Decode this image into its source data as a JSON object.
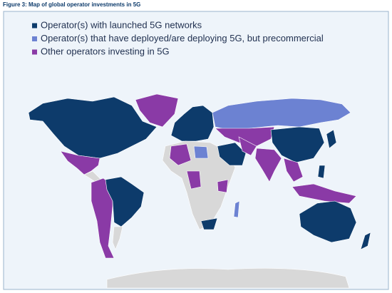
{
  "title": "Figure 3: Map of global operator investments in 5G",
  "legend": [
    {
      "label": "Operator(s) with launched 5G networks",
      "color": "#0d3b6b"
    },
    {
      "label": "Operator(s) that have deployed/are deploying 5G, but precommercial",
      "color": "#6c82d2"
    },
    {
      "label": "Other operators investing in 5G",
      "color": "#8a3aa6"
    }
  ]
}
